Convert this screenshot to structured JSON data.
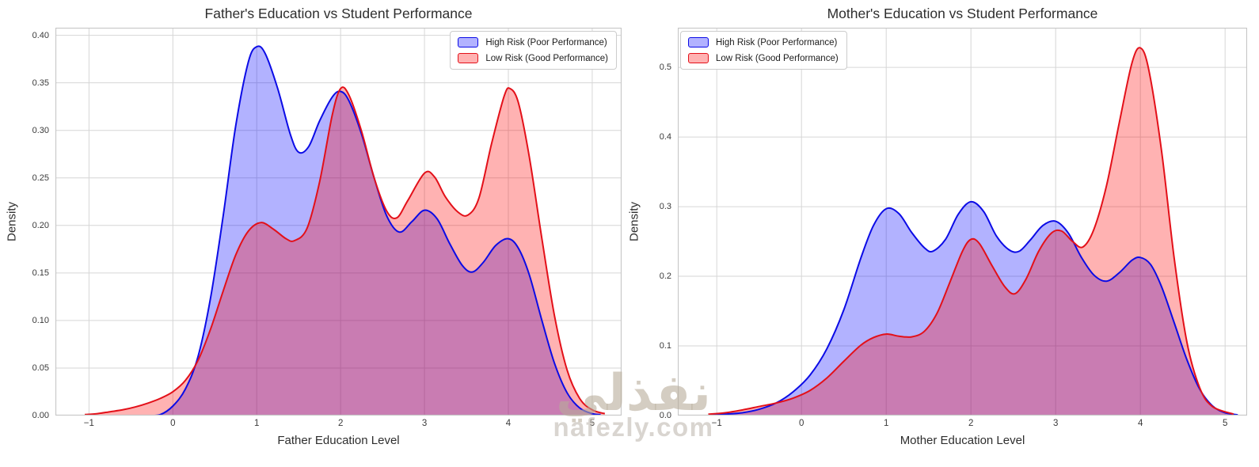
{
  "figure": {
    "watermark": {
      "line1": "نفذلي",
      "line2": "nafezly.com"
    }
  },
  "style": {
    "grid_color": "#d6d6d6",
    "spine_color": "#c6c6c6",
    "high_risk_line": "#0b0be6",
    "high_risk_fill": "rgba(0,0,255,0.30)",
    "low_risk_line": "#e31019",
    "low_risk_fill": "rgba(255,0,0,0.30)"
  },
  "chart_data": [
    {
      "type": "area",
      "variant": "kde-density",
      "title": "Father's Education vs Student Performance",
      "xlabel": "Father Education Level",
      "ylabel": "Density",
      "xlim": [
        -1.4,
        5.35
      ],
      "ylim": [
        0,
        0.408
      ],
      "grid": true,
      "legend_position": "upper right",
      "xticks": [
        {
          "v": -1,
          "label": "−1"
        },
        {
          "v": 0,
          "label": "0"
        },
        {
          "v": 1,
          "label": "1"
        },
        {
          "v": 2,
          "label": "2"
        },
        {
          "v": 3,
          "label": "3"
        },
        {
          "v": 4,
          "label": "4"
        },
        {
          "v": 5,
          "label": "5"
        }
      ],
      "yticks": [
        {
          "v": 0.0,
          "label": "0.00"
        },
        {
          "v": 0.05,
          "label": "0.05"
        },
        {
          "v": 0.1,
          "label": "0.10"
        },
        {
          "v": 0.15,
          "label": "0.15"
        },
        {
          "v": 0.2,
          "label": "0.20"
        },
        {
          "v": 0.25,
          "label": "0.25"
        },
        {
          "v": 0.3,
          "label": "0.30"
        },
        {
          "v": 0.35,
          "label": "0.35"
        },
        {
          "v": 0.4,
          "label": "0.40"
        }
      ],
      "legend": {
        "entries": [
          {
            "label": "High Risk (Poor Performance)"
          },
          {
            "label": "Low Risk (Good Performance)"
          }
        ]
      },
      "series": [
        {
          "name": "High Risk (Poor Performance)",
          "color_key": "high_risk",
          "points": [
            [
              -0.3,
              0.0
            ],
            [
              -0.15,
              0.001
            ],
            [
              0.0,
              0.01
            ],
            [
              0.15,
              0.028
            ],
            [
              0.3,
              0.062
            ],
            [
              0.45,
              0.124
            ],
            [
              0.6,
              0.21
            ],
            [
              0.75,
              0.305
            ],
            [
              0.9,
              0.372
            ],
            [
              1.0,
              0.388
            ],
            [
              1.1,
              0.381
            ],
            [
              1.25,
              0.344
            ],
            [
              1.4,
              0.296
            ],
            [
              1.5,
              0.277
            ],
            [
              1.62,
              0.283
            ],
            [
              1.75,
              0.31
            ],
            [
              1.9,
              0.335
            ],
            [
              2.0,
              0.341
            ],
            [
              2.1,
              0.331
            ],
            [
              2.25,
              0.296
            ],
            [
              2.4,
              0.25
            ],
            [
              2.55,
              0.21
            ],
            [
              2.7,
              0.193
            ],
            [
              2.85,
              0.204
            ],
            [
              3.0,
              0.216
            ],
            [
              3.15,
              0.207
            ],
            [
              3.3,
              0.181
            ],
            [
              3.45,
              0.158
            ],
            [
              3.57,
              0.151
            ],
            [
              3.7,
              0.161
            ],
            [
              3.85,
              0.179
            ],
            [
              4.0,
              0.186
            ],
            [
              4.12,
              0.176
            ],
            [
              4.25,
              0.148
            ],
            [
              4.4,
              0.1
            ],
            [
              4.55,
              0.055
            ],
            [
              4.7,
              0.024
            ],
            [
              4.85,
              0.008
            ],
            [
              5.0,
              0.002
            ],
            [
              5.1,
              0.001
            ]
          ]
        },
        {
          "name": "Low Risk (Good Performance)",
          "color_key": "low_risk",
          "points": [
            [
              -1.05,
              0.001
            ],
            [
              -0.9,
              0.002
            ],
            [
              -0.75,
              0.004
            ],
            [
              -0.6,
              0.006
            ],
            [
              -0.45,
              0.009
            ],
            [
              -0.3,
              0.013
            ],
            [
              -0.15,
              0.018
            ],
            [
              0.0,
              0.025
            ],
            [
              0.15,
              0.037
            ],
            [
              0.3,
              0.058
            ],
            [
              0.45,
              0.091
            ],
            [
              0.6,
              0.131
            ],
            [
              0.75,
              0.169
            ],
            [
              0.9,
              0.194
            ],
            [
              1.05,
              0.203
            ],
            [
              1.2,
              0.196
            ],
            [
              1.35,
              0.186
            ],
            [
              1.45,
              0.184
            ],
            [
              1.6,
              0.197
            ],
            [
              1.75,
              0.246
            ],
            [
              1.9,
              0.316
            ],
            [
              2.0,
              0.344
            ],
            [
              2.1,
              0.337
            ],
            [
              2.25,
              0.299
            ],
            [
              2.4,
              0.25
            ],
            [
              2.55,
              0.215
            ],
            [
              2.67,
              0.208
            ],
            [
              2.8,
              0.226
            ],
            [
              3.0,
              0.255
            ],
            [
              3.12,
              0.251
            ],
            [
              3.25,
              0.23
            ],
            [
              3.4,
              0.214
            ],
            [
              3.52,
              0.211
            ],
            [
              3.65,
              0.229
            ],
            [
              3.8,
              0.286
            ],
            [
              3.95,
              0.336
            ],
            [
              4.02,
              0.344
            ],
            [
              4.12,
              0.329
            ],
            [
              4.25,
              0.272
            ],
            [
              4.4,
              0.186
            ],
            [
              4.55,
              0.105
            ],
            [
              4.7,
              0.048
            ],
            [
              4.85,
              0.018
            ],
            [
              5.0,
              0.006
            ],
            [
              5.15,
              0.002
            ]
          ]
        }
      ]
    },
    {
      "type": "area",
      "variant": "kde-density",
      "title": "Mother's Education vs Student Performance",
      "xlabel": "Mother Education Level",
      "ylabel": "Density",
      "xlim": [
        -1.46,
        5.26
      ],
      "ylim": [
        0,
        0.557
      ],
      "grid": true,
      "legend_position": "upper left",
      "xticks": [
        {
          "v": -1,
          "label": "−1"
        },
        {
          "v": 0,
          "label": "0"
        },
        {
          "v": 1,
          "label": "1"
        },
        {
          "v": 2,
          "label": "2"
        },
        {
          "v": 3,
          "label": "3"
        },
        {
          "v": 4,
          "label": "4"
        },
        {
          "v": 5,
          "label": "5"
        }
      ],
      "yticks": [
        {
          "v": 0.0,
          "label": "0.0"
        },
        {
          "v": 0.1,
          "label": "0.1"
        },
        {
          "v": 0.2,
          "label": "0.2"
        },
        {
          "v": 0.3,
          "label": "0.3"
        },
        {
          "v": 0.4,
          "label": "0.4"
        },
        {
          "v": 0.5,
          "label": "0.5"
        }
      ],
      "legend": {
        "entries": [
          {
            "label": "High Risk (Poor Performance)"
          },
          {
            "label": "Low Risk (Good Performance)"
          }
        ]
      },
      "series": [
        {
          "name": "High Risk (Poor Performance)",
          "color_key": "high_risk",
          "points": [
            [
              -1.1,
              0.001
            ],
            [
              -0.9,
              0.002
            ],
            [
              -0.7,
              0.004
            ],
            [
              -0.5,
              0.009
            ],
            [
              -0.3,
              0.018
            ],
            [
              -0.1,
              0.034
            ],
            [
              0.1,
              0.058
            ],
            [
              0.3,
              0.096
            ],
            [
              0.5,
              0.152
            ],
            [
              0.7,
              0.226
            ],
            [
              0.85,
              0.273
            ],
            [
              1.0,
              0.297
            ],
            [
              1.15,
              0.29
            ],
            [
              1.3,
              0.263
            ],
            [
              1.45,
              0.241
            ],
            [
              1.55,
              0.236
            ],
            [
              1.7,
              0.253
            ],
            [
              1.85,
              0.289
            ],
            [
              2.0,
              0.307
            ],
            [
              2.15,
              0.293
            ],
            [
              2.3,
              0.258
            ],
            [
              2.45,
              0.238
            ],
            [
              2.57,
              0.236
            ],
            [
              2.7,
              0.252
            ],
            [
              2.85,
              0.273
            ],
            [
              3.0,
              0.279
            ],
            [
              3.15,
              0.262
            ],
            [
              3.3,
              0.228
            ],
            [
              3.45,
              0.202
            ],
            [
              3.6,
              0.193
            ],
            [
              3.75,
              0.205
            ],
            [
              3.9,
              0.223
            ],
            [
              4.0,
              0.227
            ],
            [
              4.12,
              0.217
            ],
            [
              4.25,
              0.185
            ],
            [
              4.4,
              0.133
            ],
            [
              4.55,
              0.08
            ],
            [
              4.7,
              0.038
            ],
            [
              4.85,
              0.014
            ],
            [
              5.0,
              0.004
            ],
            [
              5.15,
              0.001
            ]
          ]
        },
        {
          "name": "Low Risk (Good Performance)",
          "color_key": "low_risk",
          "points": [
            [
              -1.1,
              0.002
            ],
            [
              -0.9,
              0.004
            ],
            [
              -0.7,
              0.008
            ],
            [
              -0.5,
              0.013
            ],
            [
              -0.3,
              0.018
            ],
            [
              -0.1,
              0.025
            ],
            [
              0.1,
              0.036
            ],
            [
              0.3,
              0.054
            ],
            [
              0.5,
              0.078
            ],
            [
              0.7,
              0.101
            ],
            [
              0.85,
              0.112
            ],
            [
              1.0,
              0.117
            ],
            [
              1.15,
              0.114
            ],
            [
              1.3,
              0.113
            ],
            [
              1.45,
              0.121
            ],
            [
              1.6,
              0.147
            ],
            [
              1.75,
              0.191
            ],
            [
              1.9,
              0.236
            ],
            [
              2.0,
              0.253
            ],
            [
              2.1,
              0.247
            ],
            [
              2.25,
              0.215
            ],
            [
              2.4,
              0.185
            ],
            [
              2.52,
              0.175
            ],
            [
              2.65,
              0.196
            ],
            [
              2.8,
              0.236
            ],
            [
              2.95,
              0.262
            ],
            [
              3.07,
              0.265
            ],
            [
              3.2,
              0.25
            ],
            [
              3.32,
              0.242
            ],
            [
              3.45,
              0.267
            ],
            [
              3.6,
              0.33
            ],
            [
              3.75,
              0.42
            ],
            [
              3.9,
              0.506
            ],
            [
              4.0,
              0.528
            ],
            [
              4.1,
              0.496
            ],
            [
              4.25,
              0.38
            ],
            [
              4.4,
              0.225
            ],
            [
              4.55,
              0.105
            ],
            [
              4.7,
              0.04
            ],
            [
              4.85,
              0.013
            ],
            [
              5.1,
              0.002
            ]
          ]
        }
      ]
    }
  ]
}
